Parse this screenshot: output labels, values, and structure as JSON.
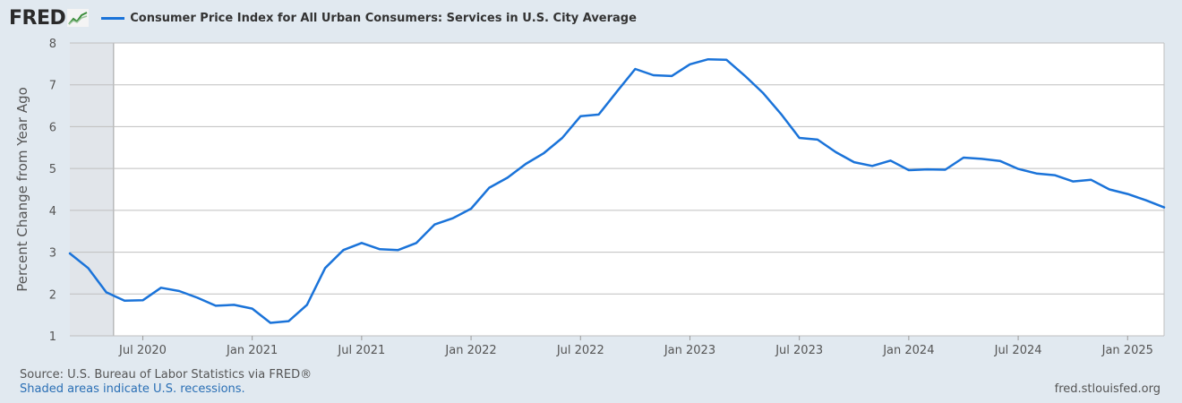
{
  "header": {
    "logo_text": "FRED",
    "legend_label": "Consumer Price Index for All Urban Consumers: Services in U.S. City Average"
  },
  "footer": {
    "source": "Source: U.S. Bureau of Labor Statistics via FRED®",
    "recession_note": "Shaded areas indicate U.S. recessions.",
    "site": "fred.stlouisfed.org"
  },
  "colors": {
    "line": "#1a73d9",
    "recession_shade": "#e1e5ea",
    "grid": "#bfbfbf"
  },
  "chart_data": {
    "type": "line",
    "ylabel": "Percent Change from Year Ago",
    "ylim": [
      1,
      8
    ],
    "y_ticks": [
      1,
      2,
      3,
      4,
      5,
      6,
      7,
      8
    ],
    "x_range": [
      "2020-03",
      "2025-03"
    ],
    "x_ticks": [
      {
        "date": "2020-07",
        "label": "Jul 2020"
      },
      {
        "date": "2021-01",
        "label": "Jan 2021"
      },
      {
        "date": "2021-07",
        "label": "Jul 2021"
      },
      {
        "date": "2022-01",
        "label": "Jan 2022"
      },
      {
        "date": "2022-07",
        "label": "Jul 2022"
      },
      {
        "date": "2023-01",
        "label": "Jan 2023"
      },
      {
        "date": "2023-07",
        "label": "Jul 2023"
      },
      {
        "date": "2024-01",
        "label": "Jan 2024"
      },
      {
        "date": "2024-07",
        "label": "Jul 2024"
      },
      {
        "date": "2025-01",
        "label": "Jan 2025"
      }
    ],
    "recessions": [
      {
        "start": "2020-03",
        "end": "2020-05"
      }
    ],
    "grid": true,
    "series": [
      {
        "name": "Consumer Price Index for All Urban Consumers: Services in U.S. City Average",
        "x": [
          "2020-03",
          "2020-04",
          "2020-05",
          "2020-06",
          "2020-07",
          "2020-08",
          "2020-09",
          "2020-10",
          "2020-11",
          "2020-12",
          "2021-01",
          "2021-02",
          "2021-03",
          "2021-04",
          "2021-05",
          "2021-06",
          "2021-07",
          "2021-08",
          "2021-09",
          "2021-10",
          "2021-11",
          "2021-12",
          "2022-01",
          "2022-02",
          "2022-03",
          "2022-04",
          "2022-05",
          "2022-06",
          "2022-07",
          "2022-08",
          "2022-09",
          "2022-10",
          "2022-11",
          "2022-12",
          "2023-01",
          "2023-02",
          "2023-03",
          "2023-04",
          "2023-05",
          "2023-06",
          "2023-07",
          "2023-08",
          "2023-09",
          "2023-10",
          "2023-11",
          "2023-12",
          "2024-01",
          "2024-02",
          "2024-03",
          "2024-04",
          "2024-05",
          "2024-06",
          "2024-07",
          "2024-08",
          "2024-09",
          "2024-10",
          "2024-11",
          "2024-12",
          "2025-01",
          "2025-02",
          "2025-03"
        ],
        "y": [
          2.97,
          2.62,
          2.04,
          1.84,
          1.85,
          2.15,
          2.07,
          1.91,
          1.72,
          1.74,
          1.65,
          1.31,
          1.35,
          1.74,
          2.62,
          3.05,
          3.22,
          3.07,
          3.05,
          3.22,
          3.66,
          3.81,
          4.04,
          4.54,
          4.78,
          5.11,
          5.37,
          5.73,
          6.25,
          6.29,
          6.84,
          7.38,
          7.23,
          7.21,
          7.49,
          7.61,
          7.6,
          7.22,
          6.81,
          6.3,
          5.73,
          5.69,
          5.39,
          5.15,
          5.06,
          5.19,
          4.96,
          4.98,
          4.97,
          5.26,
          5.23,
          5.18,
          4.99,
          4.88,
          4.84,
          4.69,
          4.73,
          4.5,
          4.39,
          4.24,
          4.07
        ]
      }
    ]
  }
}
